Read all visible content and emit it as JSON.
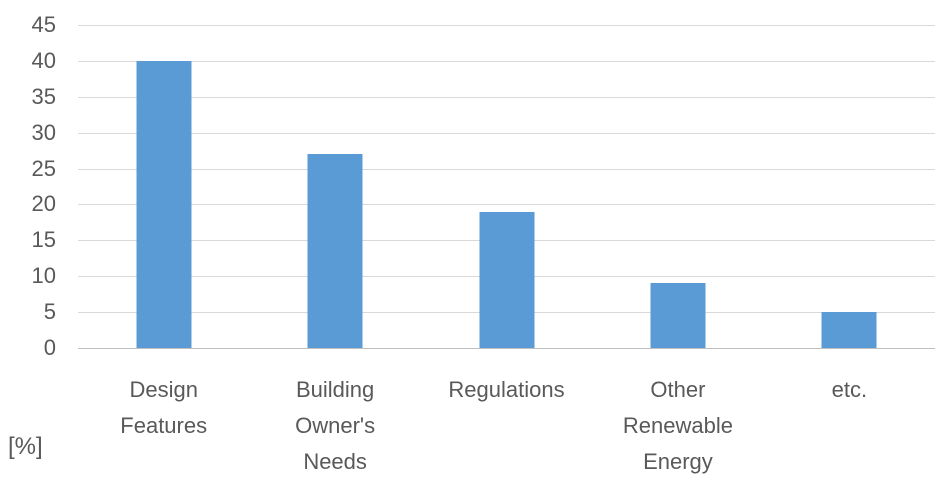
{
  "chart_data": {
    "type": "bar",
    "title": "",
    "categories": [
      "Design Features",
      "Building Owner's Needs",
      "Regulations",
      "Other Renewable Energy",
      "etc."
    ],
    "category_label_lines": [
      [
        "Design",
        "Features"
      ],
      [
        "Building",
        "Owner's",
        "Needs"
      ],
      [
        "Regulations"
      ],
      [
        "Other",
        "Renewable",
        "Energy"
      ],
      [
        "etc."
      ]
    ],
    "values": [
      40,
      27,
      19,
      9,
      5
    ],
    "xlabel": "",
    "ylabel": "[%]",
    "ylim": [
      0,
      45
    ],
    "yticks": [
      0,
      5,
      10,
      15,
      20,
      25,
      30,
      35,
      40,
      45
    ],
    "grid": true,
    "legend": false,
    "colors": {
      "bar": "#5B9BD5",
      "gridline": "#D9D9D9",
      "axis_line": "#BFBFBF",
      "text": "#595959"
    }
  }
}
